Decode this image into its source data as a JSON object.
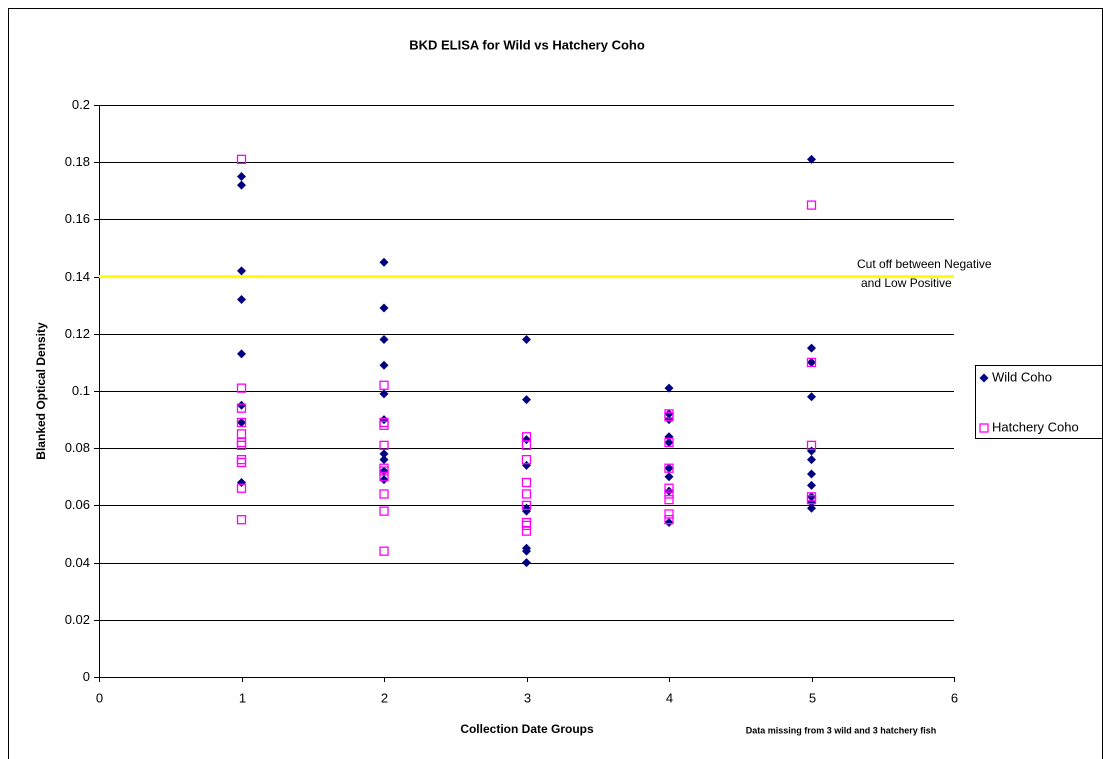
{
  "chart_data": {
    "type": "scatter",
    "title": "BKD ELISA for Wild vs Hatchery Coho",
    "x_label": "Collection Date Groups",
    "y_label": "Blanked Optical Density",
    "footnote": "Data missing from 3 wild and 3 hatchery fish",
    "xlim": [
      0,
      6
    ],
    "xticks": [
      0,
      1,
      2,
      3,
      4,
      5,
      6
    ],
    "ylim": [
      0,
      0.2
    ],
    "yticks": [
      0,
      0.02,
      0.04,
      0.06,
      0.08,
      0.1,
      0.12,
      0.14,
      0.16,
      0.18,
      0.2
    ],
    "grid": true,
    "legend": "right",
    "cutoff": {
      "value": 0.14,
      "color": "#ffff00",
      "lines": [
        "Cut off between Negative",
        "and Low Positive"
      ]
    },
    "series": [
      {
        "name": "Wild Coho",
        "color": "#000080",
        "marker": "diamond",
        "x": [
          1,
          1,
          1,
          1,
          1,
          1,
          1,
          1,
          2,
          2,
          2,
          2,
          2,
          2,
          2,
          2,
          2,
          2,
          3,
          3,
          3,
          3,
          3,
          3,
          3,
          3,
          3,
          4,
          4,
          4,
          4,
          4,
          4,
          4,
          4,
          4,
          5,
          5,
          5,
          5,
          5,
          5,
          5,
          5,
          5,
          5,
          5
        ],
        "values": [
          0.175,
          0.172,
          0.142,
          0.132,
          0.113,
          0.095,
          0.089,
          0.068,
          0.145,
          0.129,
          0.118,
          0.109,
          0.099,
          0.09,
          0.078,
          0.076,
          0.072,
          0.069,
          0.118,
          0.097,
          0.083,
          0.074,
          0.059,
          0.058,
          0.045,
          0.044,
          0.04,
          0.101,
          0.092,
          0.09,
          0.084,
          0.082,
          0.073,
          0.07,
          0.065,
          0.054,
          0.181,
          0.115,
          0.11,
          0.098,
          0.079,
          0.076,
          0.071,
          0.067,
          0.063,
          0.061,
          0.059
        ]
      },
      {
        "name": "Hatchery Coho",
        "color": "#ff00ff",
        "marker": "square",
        "x": [
          1,
          1,
          1,
          1,
          1,
          1,
          1,
          1,
          1,
          1,
          1,
          2,
          2,
          2,
          2,
          2,
          2,
          2,
          2,
          2,
          2,
          3,
          3,
          3,
          3,
          3,
          3,
          3,
          3,
          3,
          4,
          4,
          4,
          4,
          4,
          4,
          4,
          4,
          4,
          5,
          5,
          5,
          5,
          5
        ],
        "values": [
          0.181,
          0.101,
          0.094,
          0.089,
          0.085,
          0.082,
          0.081,
          0.076,
          0.075,
          0.066,
          0.055,
          0.102,
          0.089,
          0.088,
          0.081,
          0.073,
          0.072,
          0.07,
          0.064,
          0.058,
          0.044,
          0.084,
          0.081,
          0.076,
          0.068,
          0.064,
          0.06,
          0.054,
          0.053,
          0.051,
          0.092,
          0.091,
          0.082,
          0.073,
          0.066,
          0.064,
          0.062,
          0.057,
          0.055,
          0.165,
          0.11,
          0.081,
          0.063,
          0.062
        ]
      }
    ]
  }
}
